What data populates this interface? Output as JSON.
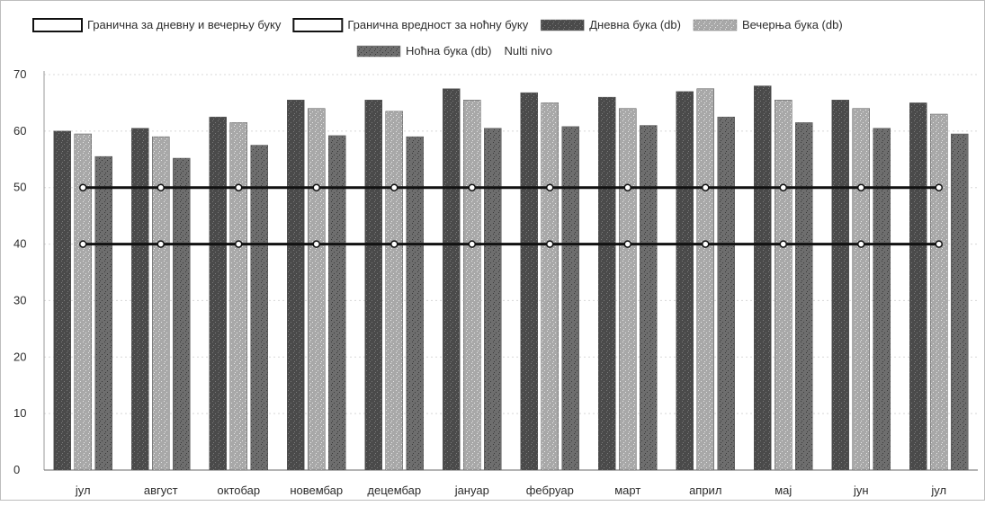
{
  "chart_data": {
    "type": "bar",
    "title": "",
    "xlabel": "",
    "ylabel": "",
    "ylim": [
      0,
      70
    ],
    "yticks": [
      0,
      10,
      20,
      30,
      40,
      50,
      60,
      70
    ],
    "grid": true,
    "legend_position": "top",
    "categories": [
      "јул",
      "август",
      "октобар",
      "новембар",
      "децембар",
      "јануар",
      "фебруар",
      "март",
      "април",
      "мај",
      "јун",
      "јул"
    ],
    "series": [
      {
        "name": "Дневна бука (db)",
        "kind": "bar",
        "color": "#4a4a4a",
        "values": [
          60,
          60.5,
          62.5,
          65.5,
          65.5,
          67.5,
          66.8,
          66,
          67,
          68,
          65.5,
          65
        ]
      },
      {
        "name": "Вечерња бука (db)",
        "kind": "bar",
        "color": "#a8a8a8",
        "values": [
          59.5,
          59,
          61.5,
          64,
          63.5,
          65.5,
          65,
          64,
          67.5,
          65.5,
          64,
          63
        ]
      },
      {
        "name": "Ноћна бука (db)",
        "kind": "bar",
        "color": "#6e6e6e",
        "values": [
          55.5,
          55.2,
          57.5,
          59.2,
          59,
          60.5,
          60.8,
          61,
          62.5,
          61.5,
          60.5,
          59.5
        ]
      },
      {
        "name": "Гранична за дневну и вечерњу буку",
        "kind": "line",
        "color": "#111111",
        "values": [
          50,
          50,
          50,
          50,
          50,
          50,
          50,
          50,
          50,
          50,
          50,
          50
        ]
      },
      {
        "name": "Гранична вредност за ноћну буку",
        "kind": "line",
        "color": "#111111",
        "values": [
          40,
          40,
          40,
          40,
          40,
          40,
          40,
          40,
          40,
          40,
          40,
          40
        ]
      }
    ],
    "legend": {
      "row1": [
        {
          "label": "Гранична за дневну и вечерњу буку",
          "swatch": "outline",
          "color": "#111111"
        },
        {
          "label": "Гранична вредност за ноћну буку",
          "swatch": "outline",
          "color": "#111111"
        },
        {
          "label": "Дневна бука (db)",
          "swatch": "fill",
          "color": "#4a4a4a"
        },
        {
          "label": "Вечерња бука (db)",
          "swatch": "fill",
          "color": "#cfcfcf"
        }
      ],
      "row2": [
        {
          "label": "Ноћна бука (db)",
          "swatch": "fill",
          "color": "#6e6e6e"
        },
        {
          "label": "Nulti nivo",
          "swatch": "none",
          "color": "#ffffff"
        }
      ]
    }
  }
}
